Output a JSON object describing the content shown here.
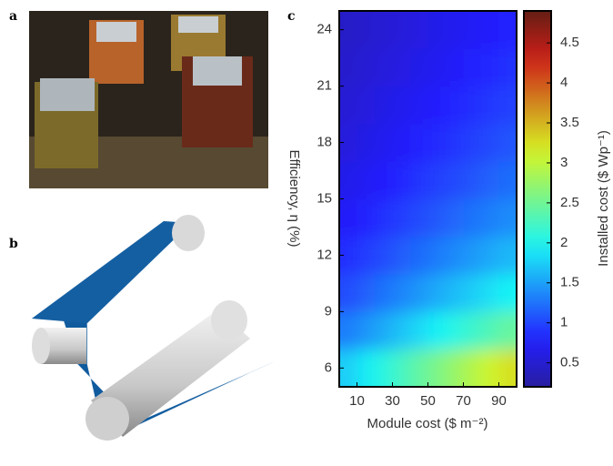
{
  "panels": {
    "a": "a",
    "b": "b"
  },
  "chart_data": {
    "type": "heatmap",
    "panel": "c",
    "xlabel": "Module cost ($ m⁻²)",
    "ylabel": "Efficiency, η (%)",
    "colorbar_label": "Installed cost ($ Wp⁻¹)",
    "x": [
      5,
      15,
      25,
      35,
      45,
      55,
      65,
      75,
      85,
      95
    ],
    "y": [
      6,
      8,
      10,
      12,
      14,
      16,
      18,
      20,
      22,
      24
    ],
    "z": [
      [
        1.75,
        1.92,
        2.08,
        2.25,
        2.42,
        2.58,
        2.75,
        2.92,
        3.08,
        3.25
      ],
      [
        1.31,
        1.44,
        1.56,
        1.69,
        1.81,
        1.94,
        2.06,
        2.19,
        2.31,
        2.44
      ],
      [
        1.05,
        1.15,
        1.25,
        1.35,
        1.45,
        1.55,
        1.65,
        1.75,
        1.85,
        1.95
      ],
      [
        0.88,
        0.96,
        1.04,
        1.13,
        1.21,
        1.29,
        1.38,
        1.46,
        1.54,
        1.63
      ],
      [
        0.75,
        0.82,
        0.89,
        0.96,
        1.04,
        1.11,
        1.18,
        1.25,
        1.32,
        1.39
      ],
      [
        0.66,
        0.72,
        0.78,
        0.84,
        0.91,
        0.97,
        1.03,
        1.09,
        1.16,
        1.22
      ],
      [
        0.58,
        0.64,
        0.69,
        0.75,
        0.81,
        0.86,
        0.92,
        0.97,
        1.03,
        1.08
      ],
      [
        0.53,
        0.58,
        0.63,
        0.68,
        0.73,
        0.78,
        0.83,
        0.88,
        0.93,
        0.98
      ],
      [
        0.48,
        0.52,
        0.57,
        0.61,
        0.66,
        0.7,
        0.75,
        0.8,
        0.84,
        0.89
      ],
      [
        0.44,
        0.48,
        0.52,
        0.56,
        0.6,
        0.65,
        0.69,
        0.73,
        0.77,
        0.81
      ]
    ],
    "xlim": [
      0,
      100
    ],
    "ylim": [
      5,
      25
    ],
    "xticks": [
      10,
      30,
      50,
      70,
      90
    ],
    "yticks": [
      6,
      9,
      12,
      15,
      18,
      21,
      24
    ],
    "zlim": [
      0.2,
      4.9
    ],
    "zticks": [
      0.5,
      1,
      1.5,
      2,
      2.5,
      3,
      3.5,
      4,
      4.5
    ],
    "colormap": "jet"
  }
}
